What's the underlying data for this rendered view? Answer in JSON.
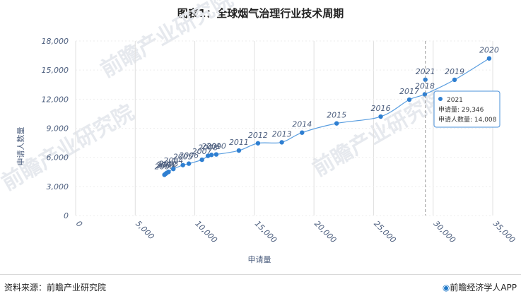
{
  "title": "图表1：全球烟气治理行业技术周期",
  "footer": {
    "source": "资料来源：前瞻产业研究院",
    "brand": "前瞻经济学人APP",
    "brand_icon": "bulb-logo-icon"
  },
  "watermark": {
    "text": "前瞻产业研究院",
    "color": "#e6e9ee"
  },
  "colors": {
    "series": "#2f7fd1",
    "line": "#5a9ee0",
    "label": "#4b5d7d",
    "grid": "#e0e0e0",
    "crosshair": "#999999",
    "tooltip_border": "#4a90d9"
  },
  "chart_data": {
    "type": "line",
    "title": "图表1：全球烟气治理行业技术周期",
    "xlabel": "申请量",
    "ylabel": "申请人数量",
    "xlim": [
      0,
      35000
    ],
    "ylim": [
      0,
      18000
    ],
    "xticks": [
      0,
      5000,
      10000,
      15000,
      20000,
      25000,
      30000,
      35000
    ],
    "xtick_labels": [
      "0",
      "5,000",
      "10,000",
      "15,000",
      "20,000",
      "25,000",
      "30,000",
      "35,000"
    ],
    "yticks": [
      0,
      3000,
      6000,
      9000,
      12000,
      15000,
      18000
    ],
    "ytick_labels": [
      "0",
      "3,000",
      "6,000",
      "9,000",
      "12,000",
      "15,000",
      "18,000"
    ],
    "grid": "vertical",
    "series": [
      {
        "points": [
          {
            "year": "2000",
            "x": 7450,
            "y": 4200
          },
          {
            "year": "2001",
            "x": 7550,
            "y": 4300
          },
          {
            "year": "2002",
            "x": 7650,
            "y": 4400
          },
          {
            "year": "2003",
            "x": 7800,
            "y": 4500
          },
          {
            "year": "2004",
            "x": 8200,
            "y": 4800
          },
          {
            "year": "2005",
            "x": 9000,
            "y": 5200
          },
          {
            "year": "2006",
            "x": 9500,
            "y": 5350
          },
          {
            "year": "2007",
            "x": 10600,
            "y": 5750
          },
          {
            "year": "2008",
            "x": 11100,
            "y": 6150
          },
          {
            "year": "2009",
            "x": 11400,
            "y": 6250
          },
          {
            "year": "2010",
            "x": 11800,
            "y": 6300
          },
          {
            "year": "2011",
            "x": 13700,
            "y": 6700
          },
          {
            "year": "2012",
            "x": 15300,
            "y": 7450
          },
          {
            "year": "2013",
            "x": 17300,
            "y": 7550
          },
          {
            "year": "2014",
            "x": 19000,
            "y": 8550
          },
          {
            "year": "2015",
            "x": 21900,
            "y": 9500
          },
          {
            "year": "2016",
            "x": 25600,
            "y": 10200
          },
          {
            "year": "2017",
            "x": 28000,
            "y": 11950
          },
          {
            "year": "2018",
            "x": 29300,
            "y": 12500
          },
          {
            "year": "2019",
            "x": 31800,
            "y": 14000
          },
          {
            "year": "2020",
            "x": 34700,
            "y": 16200
          }
        ]
      }
    ],
    "highlight": {
      "year": "2021",
      "x": 29346,
      "y": 14008
    },
    "tooltip": {
      "title": "2021",
      "line1": "申请量: 29,346",
      "line2": "申请人数量: 14,008"
    }
  }
}
